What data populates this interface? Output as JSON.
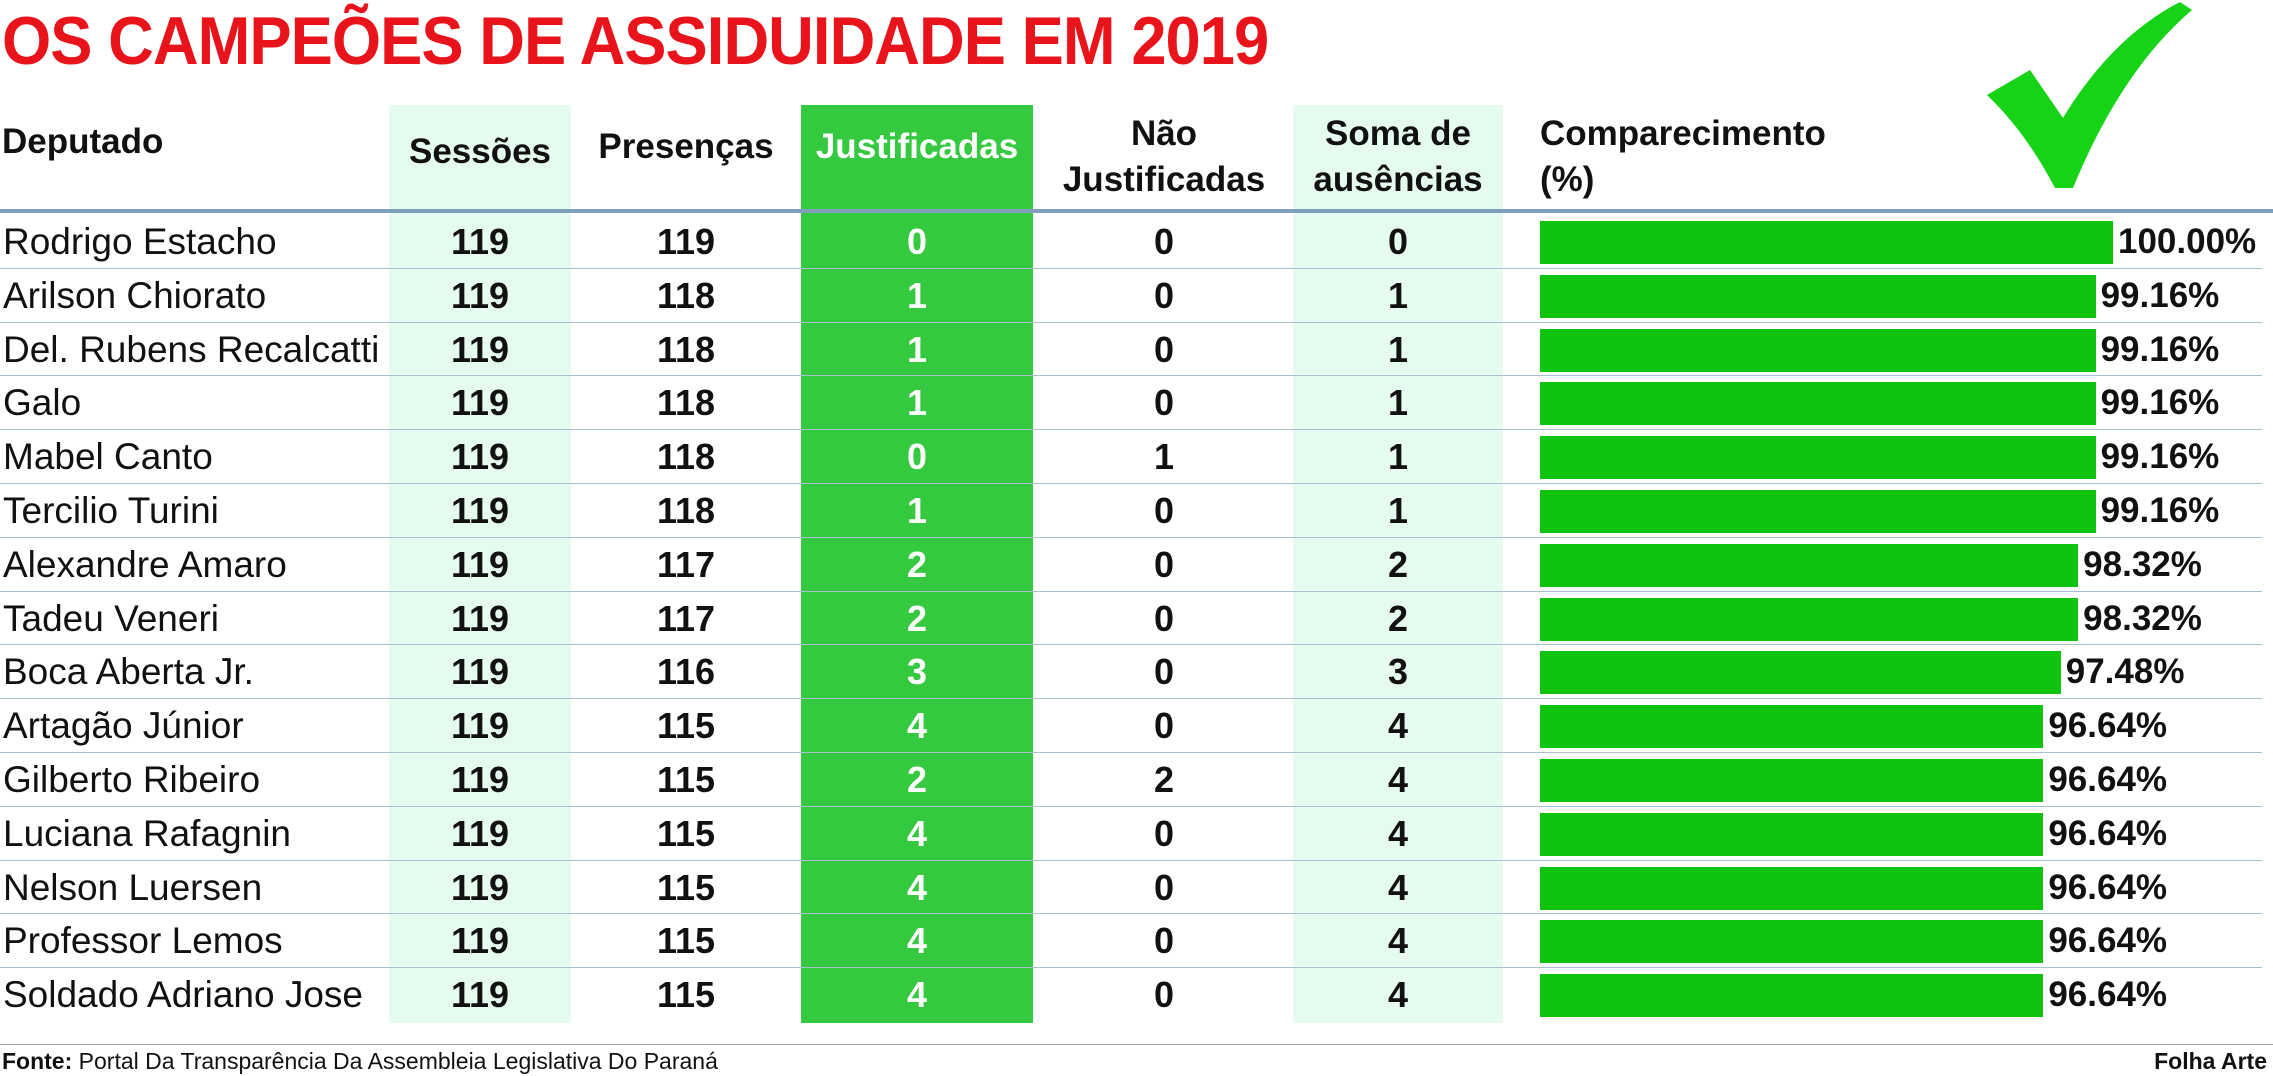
{
  "title": "OS CAMPEÕES DE ASSIDUIDADE EM 2019",
  "colors": {
    "title": "#e8131b",
    "justificadas_bg": "#35c940",
    "light_col_bg": "#e6fbef",
    "bar": "#0ec40e",
    "check": "#17d317"
  },
  "headers": {
    "deputado": "Deputado",
    "sessoes": "Sessões",
    "presencas": "Presenças",
    "justificadas": "Justificadas",
    "nao_justificadas_1": "Não",
    "nao_justificadas_2": "Justificadas",
    "soma_1": "Soma de",
    "soma_2": "ausências",
    "comparecimento_1": "Comparecimento",
    "comparecimento_2": "(%)"
  },
  "check_icon": "check-mark-icon",
  "chart_data": {
    "type": "table",
    "columns": [
      "Deputado",
      "Sessões",
      "Presenças",
      "Justificadas",
      "Não Justificadas",
      "Soma de ausências",
      "Comparecimento (%)"
    ],
    "rows": [
      {
        "name": "Rodrigo Estacho",
        "sessoes": "119",
        "presencas": "119",
        "justificadas": "0",
        "nao_justificadas": "0",
        "soma": "0",
        "comparecimento": 100.0,
        "pct_label": "100.00%"
      },
      {
        "name": "Arilson Chiorato",
        "sessoes": "119",
        "presencas": "118",
        "justificadas": "1",
        "nao_justificadas": "0",
        "soma": "1",
        "comparecimento": 99.16,
        "pct_label": "99.16%"
      },
      {
        "name": "Del. Rubens Recalcatti",
        "sessoes": "119",
        "presencas": "118",
        "justificadas": "1",
        "nao_justificadas": "0",
        "soma": "1",
        "comparecimento": 99.16,
        "pct_label": "99.16%"
      },
      {
        "name": "Galo",
        "sessoes": "119",
        "presencas": "118",
        "justificadas": "1",
        "nao_justificadas": "0",
        "soma": "1",
        "comparecimento": 99.16,
        "pct_label": "99.16%"
      },
      {
        "name": "Mabel Canto",
        "sessoes": "119",
        "presencas": "118",
        "justificadas": "0",
        "nao_justificadas": "1",
        "soma": "1",
        "comparecimento": 99.16,
        "pct_label": "99.16%"
      },
      {
        "name": "Tercilio Turini",
        "sessoes": "119",
        "presencas": "118",
        "justificadas": "1",
        "nao_justificadas": "0",
        "soma": "1",
        "comparecimento": 99.16,
        "pct_label": "99.16%"
      },
      {
        "name": "Alexandre Amaro",
        "sessoes": "119",
        "presencas": "117",
        "justificadas": "2",
        "nao_justificadas": "0",
        "soma": "2",
        "comparecimento": 98.32,
        "pct_label": "98.32%"
      },
      {
        "name": "Tadeu Veneri",
        "sessoes": "119",
        "presencas": "117",
        "justificadas": "2",
        "nao_justificadas": "0",
        "soma": "2",
        "comparecimento": 98.32,
        "pct_label": "98.32%"
      },
      {
        "name": "Boca Aberta Jr.",
        "sessoes": "119",
        "presencas": "116",
        "justificadas": "3",
        "nao_justificadas": "0",
        "soma": "3",
        "comparecimento": 97.48,
        "pct_label": "97.48%"
      },
      {
        "name": "Artagão Júnior",
        "sessoes": "119",
        "presencas": "115",
        "justificadas": "4",
        "nao_justificadas": "0",
        "soma": "4",
        "comparecimento": 96.64,
        "pct_label": "96.64%"
      },
      {
        "name": "Gilberto Ribeiro",
        "sessoes": "119",
        "presencas": "115",
        "justificadas": "2",
        "nao_justificadas": "2",
        "soma": "4",
        "comparecimento": 96.64,
        "pct_label": "96.64%"
      },
      {
        "name": "Luciana Rafagnin",
        "sessoes": "119",
        "presencas": "115",
        "justificadas": "4",
        "nao_justificadas": "0",
        "soma": "4",
        "comparecimento": 96.64,
        "pct_label": "96.64%"
      },
      {
        "name": "Nelson Luersen",
        "sessoes": "119",
        "presencas": "115",
        "justificadas": "4",
        "nao_justificadas": "0",
        "soma": "4",
        "comparecimento": 96.64,
        "pct_label": "96.64%"
      },
      {
        "name": "Professor Lemos",
        "sessoes": "119",
        "presencas": "115",
        "justificadas": "4",
        "nao_justificadas": "0",
        "soma": "4",
        "comparecimento": 96.64,
        "pct_label": "96.64%"
      },
      {
        "name": "Soldado Adriano Jose",
        "sessoes": "119",
        "presencas": "115",
        "justificadas": "4",
        "nao_justificadas": "0",
        "soma": "4",
        "comparecimento": 96.64,
        "pct_label": "96.64%"
      }
    ]
  },
  "footer": {
    "source_label": "Fonte:",
    "source_text": " Portal Da Transparência Da Assembleia Legislativa Do Paraná",
    "credit": "Folha Arte"
  }
}
